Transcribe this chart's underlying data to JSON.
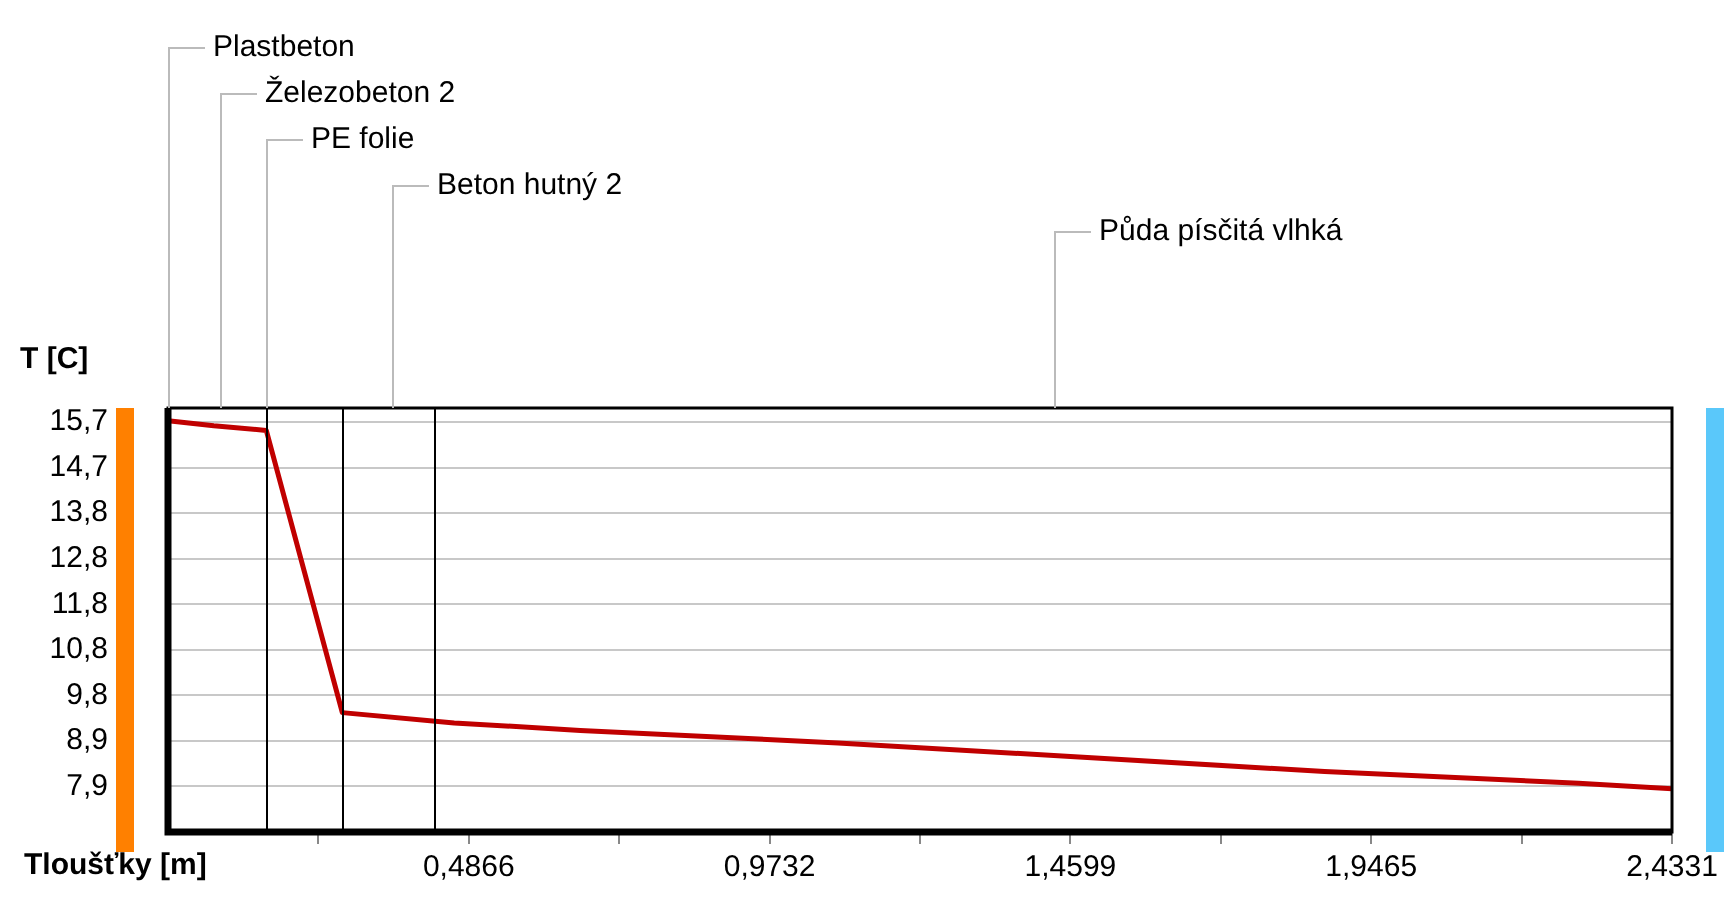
{
  "chart_data": {
    "type": "line",
    "xlabel": "Tloušťky [m]",
    "ylabel": "T [C]",
    "x": [
      0,
      0.074,
      0.159,
      0.282,
      0.463,
      0.667,
      1.084,
      1.46,
      1.871,
      2.282,
      2.4331
    ],
    "series": [
      {
        "color": "#c00000",
        "values": [
          15.73,
          15.62,
          15.52,
          9.48,
          9.26,
          9.1,
          8.83,
          8.54,
          8.22,
          7.97,
          7.85
        ]
      }
    ],
    "xlim": [
      0,
      2.4331
    ],
    "xticks": [
      {
        "value": 0.2433,
        "label": null
      },
      {
        "value": 0.4866,
        "label": "0,4866"
      },
      {
        "value": 0.7299,
        "label": null
      },
      {
        "value": 0.9732,
        "label": "0,9732"
      },
      {
        "value": 1.2166,
        "label": null
      },
      {
        "value": 1.4599,
        "label": "1,4599"
      },
      {
        "value": 1.7032,
        "label": null
      },
      {
        "value": 1.9465,
        "label": "1,9465"
      },
      {
        "value": 2.1898,
        "label": null
      },
      {
        "value": 2.4331,
        "label": "2,4331"
      }
    ],
    "ylim": [
      6.925,
      16.0
    ],
    "yticks": [
      {
        "value": 15.7,
        "label": "15,7"
      },
      {
        "value": 14.725,
        "label": "14,7"
      },
      {
        "value": 13.75,
        "label": "13,8"
      },
      {
        "value": 12.775,
        "label": "12,8"
      },
      {
        "value": 11.8,
        "label": "11,8"
      },
      {
        "value": 10.825,
        "label": "10,8"
      },
      {
        "value": 9.85,
        "label": "9,8"
      },
      {
        "value": 8.875,
        "label": "8,9"
      },
      {
        "value": 7.9,
        "label": "7,9"
      }
    ],
    "ref_lines": [
      {
        "axis": "x",
        "value": 0.159,
        "color": "#000000"
      },
      {
        "axis": "x",
        "value": 0.282,
        "color": "#000000"
      },
      {
        "axis": "x",
        "value": 0.43,
        "color": "#000000"
      }
    ],
    "annotations": [
      "Plastbeton",
      "Železobeton 2",
      "PE folie",
      "Beton hutný 2",
      "Půda písčitá vlhká"
    ],
    "grid": "y",
    "legend": false,
    "marker": "none",
    "line_style": "solid"
  }
}
